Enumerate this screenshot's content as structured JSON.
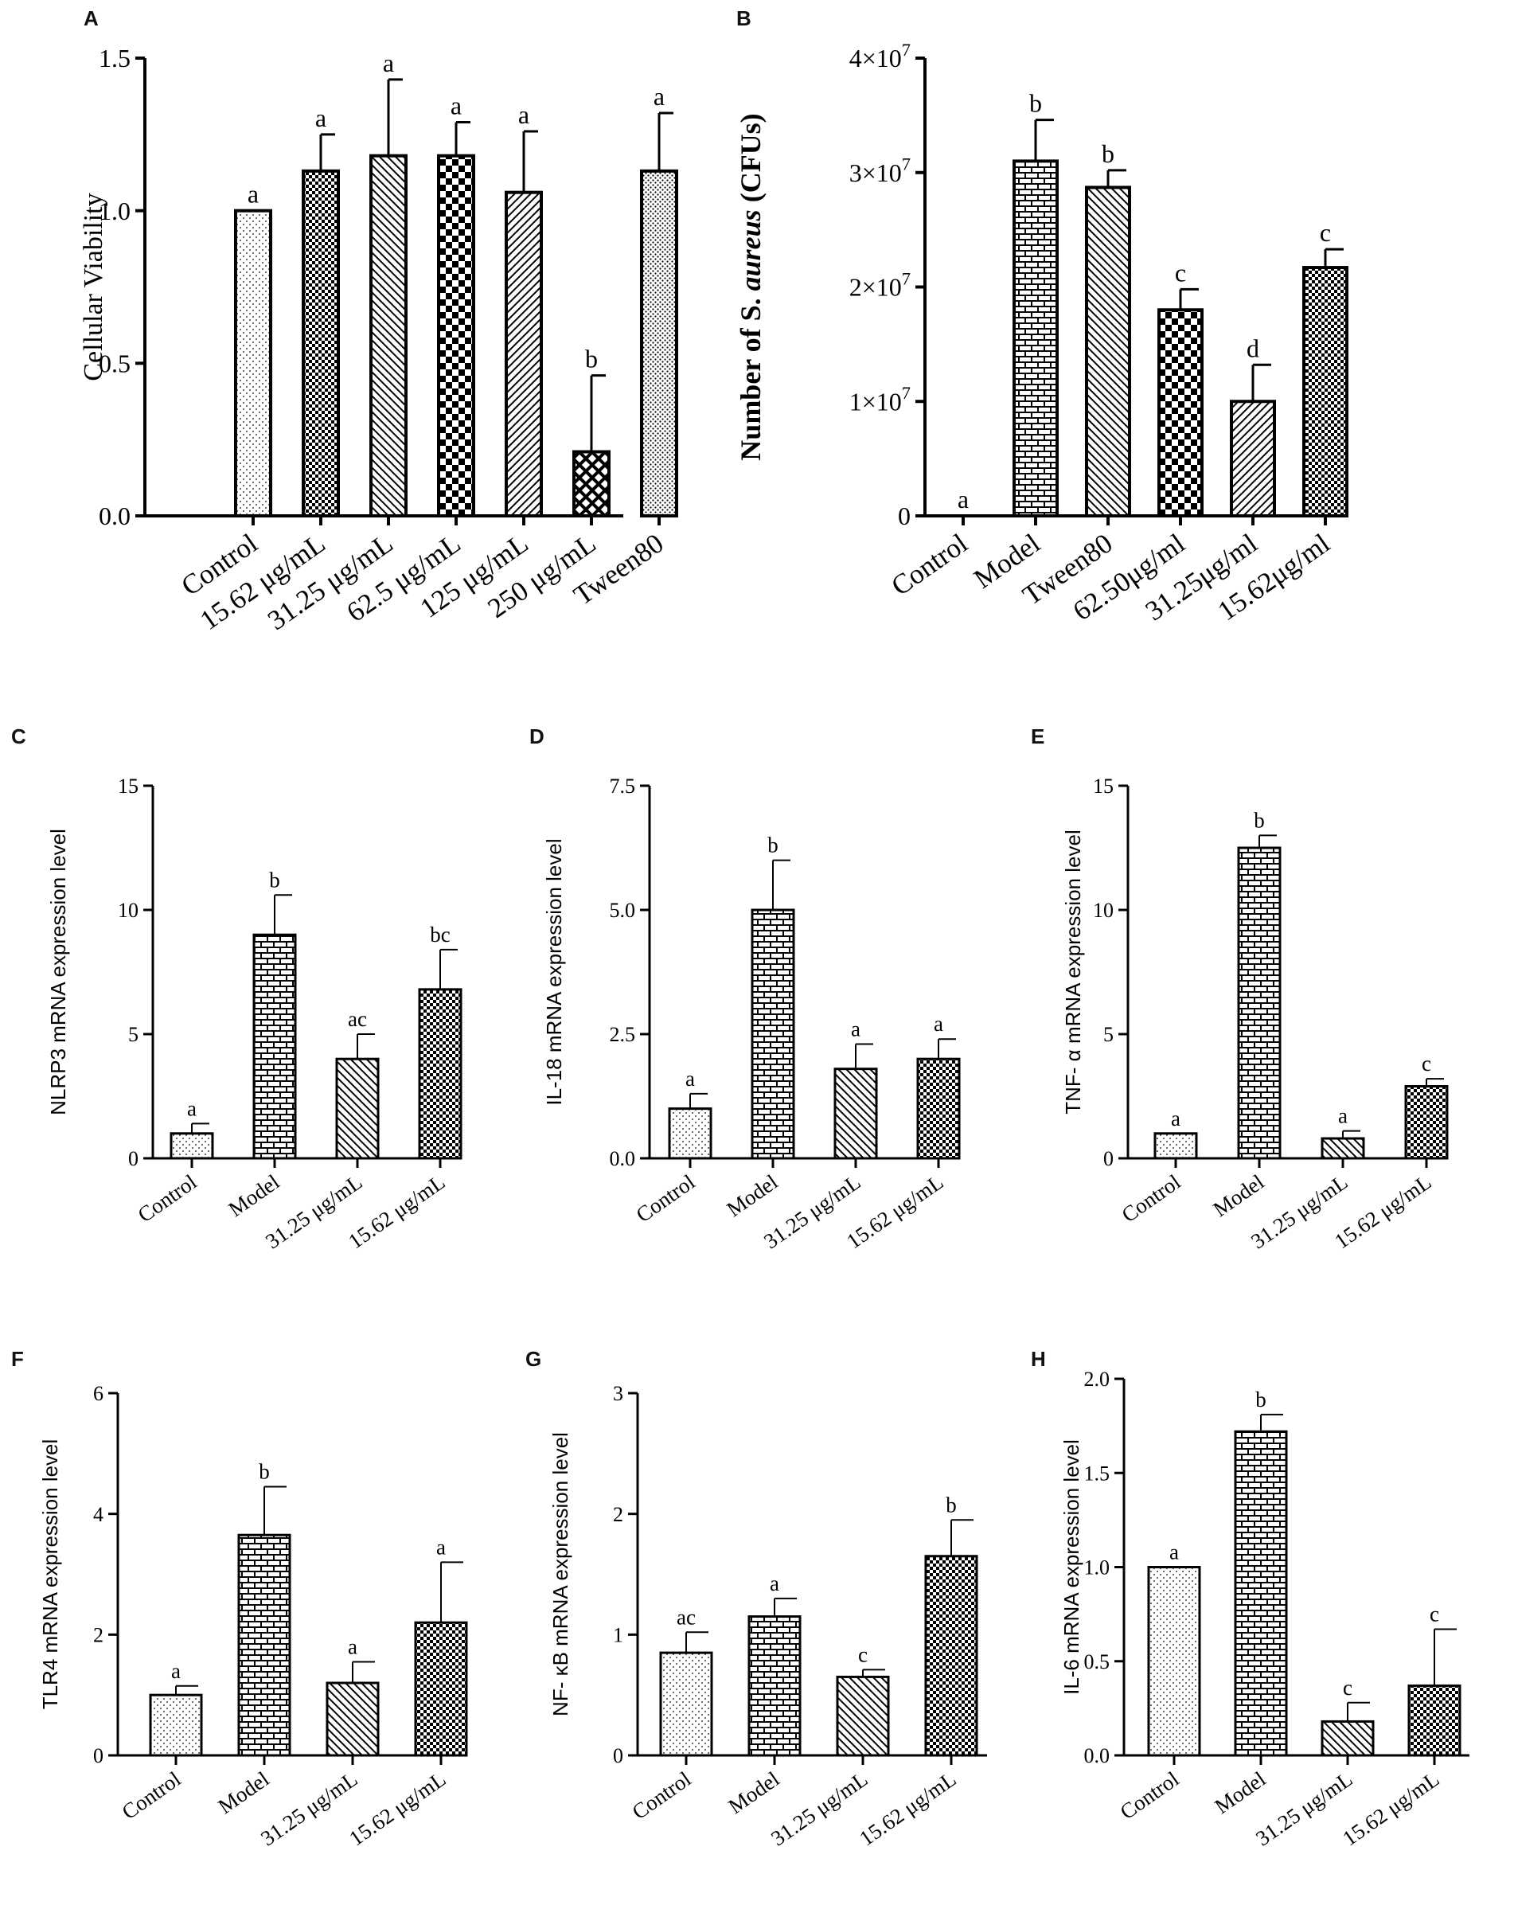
{
  "chart_data": [
    {
      "panel": "A",
      "type": "bar",
      "ylabel": "Cellular Viability",
      "ylim": [
        0,
        1.5
      ],
      "yticks": [
        0,
        0.5,
        1.0,
        1.5
      ],
      "ytick_labels": [
        "0.0",
        "0.5",
        "1.0",
        "1.5"
      ],
      "categories": [
        "Control",
        "15.62 μg/mL",
        "31.25 μg/mL",
        "62.5 μg/mL",
        "125 μg/mL",
        "250 μg/mL",
        "Tween80"
      ],
      "values": [
        1.0,
        1.13,
        1.18,
        1.18,
        1.06,
        0.21,
        1.13
      ],
      "errors": [
        0.0,
        0.12,
        0.25,
        0.11,
        0.2,
        0.25,
        0.19
      ],
      "sig": [
        "a",
        "a",
        "a",
        "a",
        "a",
        "b",
        "a"
      ],
      "patterns": [
        "dots",
        "checker-fine",
        "diag-back",
        "checker",
        "diag-fwd",
        "crosshatch",
        "dots-dense"
      ]
    },
    {
      "panel": "B",
      "type": "bar",
      "ylabel_pre": "Number of S. ",
      "ylabel_italic": "aureus",
      "ylabel_post": " (CFUs)",
      "ylim": [
        0,
        40000000
      ],
      "yticks": [
        0,
        10000000,
        20000000,
        30000000,
        40000000
      ],
      "ytick_labels": [
        "0",
        "1×10",
        "2×10",
        "3×10",
        "4×10"
      ],
      "ytick_exp": [
        "",
        "7",
        "7",
        "7",
        "7"
      ],
      "categories": [
        "Control",
        "Model",
        "Tween80",
        "62.50μg/ml",
        "31.25μg/ml",
        "15.62μg/ml"
      ],
      "values": [
        0,
        31000000,
        28700000,
        18000000,
        10000000,
        21700000
      ],
      "errors": [
        0,
        3600000,
        1500000,
        1800000,
        3200000,
        1600000
      ],
      "sig": [
        "a",
        "b",
        "b",
        "c",
        "d",
        "c"
      ],
      "patterns": [
        "none",
        "brick",
        "diag-back",
        "checker",
        "diag-fwd",
        "checker-fine"
      ]
    },
    {
      "panel": "C",
      "type": "bar",
      "ylabel": "NLRP3 mRNA expression level",
      "ylim": [
        0,
        15
      ],
      "yticks": [
        0,
        5,
        10,
        15
      ],
      "ytick_labels": [
        "0",
        "5",
        "10",
        "15"
      ],
      "categories": [
        "Control",
        "Model",
        "31.25 μg/mL",
        "15.62 μg/mL"
      ],
      "values": [
        1.0,
        9.0,
        4.0,
        6.8
      ],
      "errors": [
        0.4,
        1.6,
        1.0,
        1.6
      ],
      "sig": [
        "a",
        "b",
        "ac",
        "bc"
      ],
      "patterns": [
        "dots",
        "brick",
        "diag-back",
        "checker-fine"
      ]
    },
    {
      "panel": "D",
      "type": "bar",
      "ylabel": "IL-18 mRNA expression level",
      "ylim": [
        0,
        7.5
      ],
      "yticks": [
        0,
        2.5,
        5.0,
        7.5
      ],
      "ytick_labels": [
        "0.0",
        "2.5",
        "5.0",
        "7.5"
      ],
      "categories": [
        "Control",
        "Model",
        "31.25 μg/mL",
        "15.62 μg/mL"
      ],
      "values": [
        1.0,
        5.0,
        1.8,
        2.0
      ],
      "errors": [
        0.3,
        1.0,
        0.5,
        0.4
      ],
      "sig": [
        "a",
        "b",
        "a",
        "a"
      ],
      "patterns": [
        "dots",
        "brick",
        "diag-back",
        "checker-fine"
      ]
    },
    {
      "panel": "E",
      "type": "bar",
      "ylabel": "TNF- α  mRNA expression level",
      "ylim": [
        0,
        15
      ],
      "yticks": [
        0,
        5,
        10,
        15
      ],
      "ytick_labels": [
        "0",
        "5",
        "10",
        "15"
      ],
      "categories": [
        "Control",
        "Model",
        "31.25 μg/mL",
        "15.62 μg/mL"
      ],
      "values": [
        1.0,
        12.5,
        0.8,
        2.9
      ],
      "errors": [
        0.0,
        0.5,
        0.3,
        0.3
      ],
      "sig": [
        "a",
        "b",
        "a",
        "c"
      ],
      "patterns": [
        "dots",
        "brick",
        "diag-back",
        "checker-fine"
      ]
    },
    {
      "panel": "F",
      "type": "bar",
      "ylabel": "TLR4 mRNA expression level",
      "ylim": [
        0,
        6
      ],
      "yticks": [
        0,
        2,
        4,
        6
      ],
      "ytick_labels": [
        "0",
        "2",
        "4",
        "6"
      ],
      "categories": [
        "Control",
        "Model",
        "31.25 μg/mL",
        "15.62 μg/mL"
      ],
      "values": [
        1.0,
        3.65,
        1.2,
        2.2
      ],
      "errors": [
        0.15,
        0.8,
        0.35,
        1.0
      ],
      "sig": [
        "a",
        "b",
        "a",
        "a"
      ],
      "patterns": [
        "dots",
        "brick",
        "diag-back",
        "checker-fine"
      ]
    },
    {
      "panel": "G",
      "type": "bar",
      "ylabel": "NF- κB  mRNA expression level",
      "ylim": [
        0,
        3
      ],
      "yticks": [
        0,
        1,
        2,
        3
      ],
      "ytick_labels": [
        "0",
        "1",
        "2",
        "3"
      ],
      "categories": [
        "Control",
        "Model",
        "31.25 μg/mL",
        "15.62 μg/mL"
      ],
      "values": [
        0.85,
        1.15,
        0.65,
        1.65
      ],
      "errors": [
        0.17,
        0.15,
        0.06,
        0.3
      ],
      "sig": [
        "ac",
        "a",
        "c",
        "b"
      ],
      "patterns": [
        "dots",
        "brick",
        "diag-back",
        "checker-fine"
      ]
    },
    {
      "panel": "H",
      "type": "bar",
      "ylabel": "IL-6  mRNA expression level",
      "ylim": [
        0,
        2.0
      ],
      "yticks": [
        0,
        0.5,
        1.0,
        1.5,
        2.0
      ],
      "ytick_labels": [
        "0.0",
        "0.5",
        "1.0",
        "1.5",
        "2.0"
      ],
      "categories": [
        "Control",
        "Model",
        "31.25 μg/mL",
        "15.62 μg/mL"
      ],
      "values": [
        1.0,
        1.72,
        0.18,
        0.37
      ],
      "errors": [
        0.0,
        0.09,
        0.1,
        0.3
      ],
      "sig": [
        "a",
        "b",
        "c",
        "c"
      ],
      "patterns": [
        "dots",
        "brick",
        "diag-back",
        "checker-fine"
      ]
    }
  ]
}
